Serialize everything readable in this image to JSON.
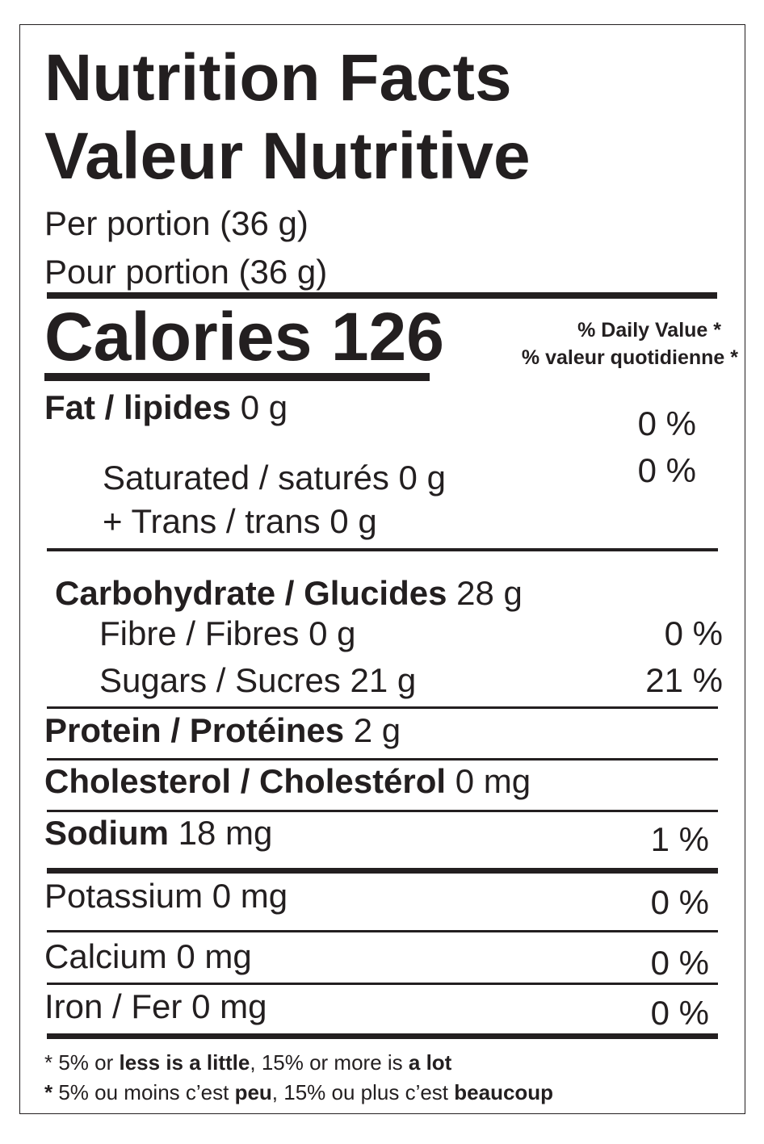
{
  "title_en": "Nutrition Facts",
  "title_fr": "Valeur Nutritive",
  "serving_en": "Per portion (36 g)",
  "serving_fr": "Pour portion (36 g)",
  "calories_label": "Calories",
  "calories_value": "126",
  "dv_header_en": "% Daily Value *",
  "dv_header_fr": "% valeur quotidienne *",
  "nutrients": {
    "fat": {
      "label": "Fat / lipides",
      "amount": "0 g",
      "dv": "0 %"
    },
    "saturated": {
      "label": "Saturated / saturés",
      "amount": "0 g",
      "dv": "0 %"
    },
    "trans": {
      "label": "+ Trans / trans",
      "amount": "0 g"
    },
    "carbohydrate": {
      "label": "Carbohydrate / Glucides",
      "amount": "28 g"
    },
    "fibre": {
      "label": "Fibre / Fibres",
      "amount": "0 g",
      "dv": "0 %"
    },
    "sugars": {
      "label": "Sugars / Sucres",
      "amount": "21 g",
      "dv": "21 %"
    },
    "protein": {
      "label": "Protein / Protéines",
      "amount": "2 g"
    },
    "cholesterol": {
      "label": "Cholesterol / Cholestérol",
      "amount": "0 mg"
    },
    "sodium": {
      "label": "Sodium",
      "amount": "18 mg",
      "dv": "1 %"
    },
    "potassium": {
      "label": "Potassium",
      "amount": "0 mg",
      "dv": "0 %"
    },
    "calcium": {
      "label": "Calcium",
      "amount": "0 mg",
      "dv": "0 %"
    },
    "iron": {
      "label": "Iron / Fer",
      "amount": "0 mg",
      "dv": "0 %"
    }
  },
  "footnote_en": {
    "p1": "* 5% or ",
    "b1": "less is a little",
    "p2": ", 15% or more is ",
    "b2": "a lot"
  },
  "footnote_fr": {
    "b0": "*",
    "p1": " 5% ou moins c’est ",
    "b1": "peu",
    "p2": ", 15% ou plus c’est ",
    "b2": "beaucoup"
  }
}
